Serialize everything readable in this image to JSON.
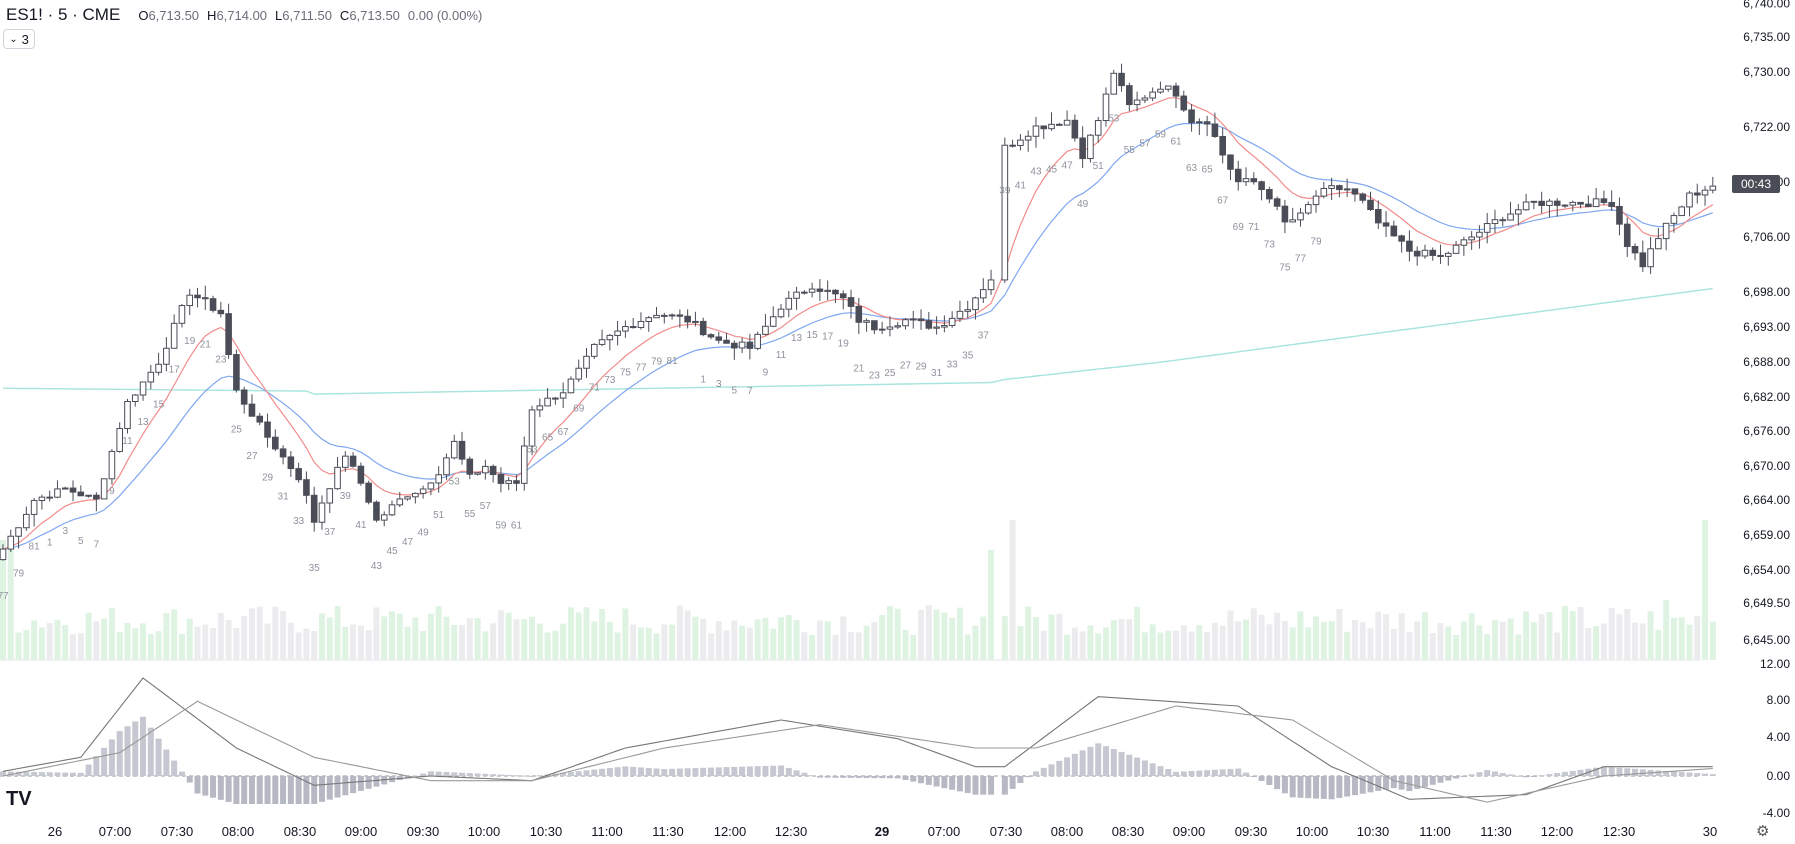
{
  "header": {
    "symbol": "ES1! · 5 · CME",
    "o_label": "O",
    "o_value": "6,713.50",
    "h_label": "H",
    "h_value": "6,714.00",
    "l_label": "L",
    "l_value": "6,711.50",
    "c_label": "C",
    "c_value": "6,713.50",
    "change": "0.00 (0.00%)",
    "indicator_count": "3"
  },
  "countdown": "00:43",
  "colors": {
    "up": "#ffffff",
    "down": "#4a4d57",
    "wick": "#4a4d57",
    "ma_short": "#f28b8b",
    "ma_mid": "#7fa7f0",
    "ma_long": "#a6e4dc",
    "vol_up": "#dff3e3",
    "vol_down": "#ececef",
    "macd": "#777777",
    "signal": "#999999",
    "hist_up": "#c5c8d0",
    "hist_down": "#b6b9c3"
  },
  "chart_data": [
    {
      "type": "candlestick",
      "title": "",
      "symbol": "ES1!",
      "timeframe": "5",
      "x_ticks": [
        "26",
        "07:00",
        "07:30",
        "08:00",
        "08:30",
        "09:00",
        "09:30",
        "10:00",
        "10:30",
        "11:00",
        "11:30",
        "12:00",
        "12:30",
        "29",
        "07:00",
        "07:30",
        "08:00",
        "08:30",
        "09:00",
        "09:30",
        "10:00",
        "10:30",
        "11:00",
        "11:30",
        "12:00",
        "12:30",
        "30"
      ],
      "y_ticks": [
        "6,740.00",
        "6,735.00",
        "6,730.00",
        "6,722.00",
        "6,714.00",
        "6,706.00",
        "6,698.00",
        "6,693.00",
        "6,688.00",
        "6,682.00",
        "6,676.00",
        "6,670.00",
        "6,664.00",
        "6,659.00",
        "6,654.00",
        "6,649.50",
        "6,645.00"
      ],
      "ylim": [
        6645,
        6740
      ],
      "close_path": [
        [
          0,
          6657
        ],
        [
          4,
          6664
        ],
        [
          8,
          6666
        ],
        [
          12,
          6664
        ],
        [
          16,
          6681
        ],
        [
          20,
          6688
        ],
        [
          24,
          6698
        ],
        [
          28,
          6695
        ],
        [
          30,
          6683
        ],
        [
          34,
          6675
        ],
        [
          38,
          6668
        ],
        [
          40,
          6661
        ],
        [
          44,
          6672
        ],
        [
          46,
          6667
        ],
        [
          48,
          6661
        ],
        [
          52,
          6665
        ],
        [
          54,
          6666
        ],
        [
          56,
          6669
        ],
        [
          58,
          6674
        ],
        [
          60,
          6668
        ],
        [
          62,
          6670
        ],
        [
          64,
          6667
        ],
        [
          66,
          6667
        ],
        [
          68,
          6680
        ],
        [
          72,
          6683
        ],
        [
          76,
          6690
        ],
        [
          80,
          6693
        ],
        [
          84,
          6695
        ],
        [
          88,
          6694
        ],
        [
          92,
          6691
        ],
        [
          96,
          6690
        ],
        [
          100,
          6696
        ],
        [
          104,
          6699
        ],
        [
          108,
          6697
        ],
        [
          110,
          6694
        ],
        [
          112,
          6693
        ],
        [
          116,
          6694
        ],
        [
          120,
          6693
        ],
        [
          124,
          6696
        ],
        [
          127,
          6700
        ],
        [
          128,
          6719
        ],
        [
          132,
          6722
        ],
        [
          136,
          6723
        ],
        [
          138,
          6718
        ],
        [
          140,
          6723
        ],
        [
          142,
          6730
        ],
        [
          144,
          6725
        ],
        [
          148,
          6728
        ],
        [
          150,
          6727
        ],
        [
          152,
          6723
        ],
        [
          154,
          6723
        ],
        [
          156,
          6718
        ],
        [
          158,
          6714
        ],
        [
          160,
          6714
        ],
        [
          162,
          6712
        ],
        [
          164,
          6708
        ],
        [
          166,
          6709
        ],
        [
          168,
          6712
        ],
        [
          170,
          6713
        ],
        [
          172,
          6713
        ],
        [
          174,
          6711
        ],
        [
          176,
          6708
        ],
        [
          178,
          6706
        ],
        [
          180,
          6704
        ],
        [
          184,
          6703
        ],
        [
          188,
          6706
        ],
        [
          192,
          6709
        ],
        [
          196,
          6711
        ],
        [
          200,
          6711
        ],
        [
          204,
          6711
        ],
        [
          206,
          6711
        ],
        [
          208,
          6705
        ],
        [
          210,
          6702
        ],
        [
          212,
          6706
        ],
        [
          214,
          6709
        ],
        [
          216,
          6712
        ],
        [
          218,
          6713
        ],
        [
          219,
          6713.5
        ]
      ],
      "bar_count_labels": [
        "77",
        "79",
        "81",
        "1",
        "3",
        "5",
        "7",
        "9",
        "11",
        "13",
        "15",
        "17",
        "19",
        "21",
        "23",
        "25",
        "27",
        "29",
        "31",
        "33",
        "35",
        "37",
        "39",
        "41",
        "43",
        "45",
        "47",
        "49",
        "51",
        "53",
        "55",
        "57",
        "59",
        "61",
        "63",
        "65",
        "67",
        "69",
        "71",
        "73",
        "75",
        "77",
        "79",
        "81",
        "1",
        "3",
        "5",
        "7",
        "9",
        "11",
        "13",
        "15",
        "17",
        "19",
        "21",
        "23",
        "25",
        "27",
        "29",
        "31",
        "33",
        "35",
        "37",
        "39",
        "41",
        "43",
        "45",
        "47",
        "49",
        "51",
        "53",
        "55",
        "57",
        "59",
        "61",
        "63",
        "65",
        "67",
        "69",
        "71",
        "73",
        "75",
        "77",
        "79"
      ],
      "moving_averages": [
        {
          "color_key": "ma_short"
        },
        {
          "color_key": "ma_mid"
        },
        {
          "color_key": "ma_long"
        }
      ]
    },
    {
      "type": "bar",
      "title": "",
      "note": "volume histogram at the bottom of the main pane, one bar per candle; up bars green, down bars grey"
    },
    {
      "type": "line",
      "title": "",
      "y_ticks": [
        "12.00",
        "8.00",
        "4.00",
        "0.00",
        "-4.00"
      ],
      "ylim": [
        -4,
        12
      ],
      "series": [
        {
          "name": "",
          "points": [
            [
              0,
              0.5
            ],
            [
              10,
              2
            ],
            [
              18,
              10.5
            ],
            [
              30,
              3
            ],
            [
              40,
              -1
            ],
            [
              55,
              0
            ],
            [
              68,
              -0.5
            ],
            [
              80,
              3
            ],
            [
              100,
              6
            ],
            [
              115,
              4
            ],
            [
              125,
              1
            ],
            [
              128,
              1
            ],
            [
              140,
              8.5
            ],
            [
              158,
              7.5
            ],
            [
              170,
              1
            ],
            [
              180,
              -2.5
            ],
            [
              195,
              -2
            ],
            [
              205,
              1
            ],
            [
              219,
              1
            ]
          ]
        },
        {
          "name": "",
          "points": [
            [
              0,
              0
            ],
            [
              15,
              2.5
            ],
            [
              25,
              8
            ],
            [
              40,
              2
            ],
            [
              55,
              -0.5
            ],
            [
              68,
              -0.5
            ],
            [
              85,
              3
            ],
            [
              105,
              5.5
            ],
            [
              125,
              3
            ],
            [
              132,
              3
            ],
            [
              150,
              7.5
            ],
            [
              165,
              6
            ],
            [
              178,
              -0.5
            ],
            [
              190,
              -2.8
            ],
            [
              205,
              0
            ],
            [
              219,
              0.8
            ]
          ]
        }
      ]
    }
  ]
}
